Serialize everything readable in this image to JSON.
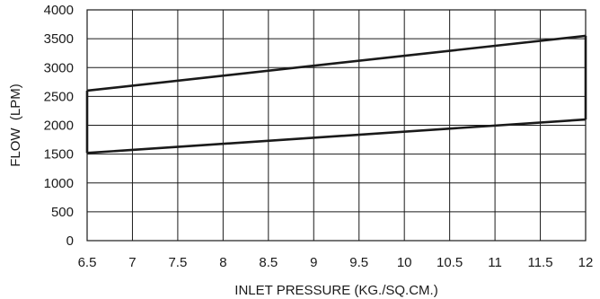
{
  "chart_data": {
    "type": "line",
    "xlabel": "INLET PRESSURE (KG./SQ.CM.)",
    "ylabel": "FLOW  (LPM)",
    "xlim": [
      6.5,
      12
    ],
    "ylim": [
      0,
      4000
    ],
    "x_ticks": [
      "6.5",
      "7",
      "7.5",
      "8",
      "8.5",
      "9",
      "9.5",
      "10",
      "10.5",
      "11",
      "11.5",
      "12"
    ],
    "y_ticks": [
      "0",
      "500",
      "1000",
      "1500",
      "2000",
      "2500",
      "3000",
      "3500",
      "4000"
    ],
    "grid": true,
    "series": [
      {
        "values": [
          [
            6.5,
            2600
          ],
          [
            12,
            3550
          ]
        ]
      },
      {
        "values": [
          [
            6.5,
            1520
          ],
          [
            12,
            2100
          ]
        ]
      }
    ],
    "envelope_edges": [
      [
        [
          6.5,
          1520
        ],
        [
          6.5,
          2600
        ]
      ],
      [
        [
          12,
          2100
        ],
        [
          12,
          3550
        ]
      ]
    ],
    "line_color": "#1a1a1a"
  }
}
